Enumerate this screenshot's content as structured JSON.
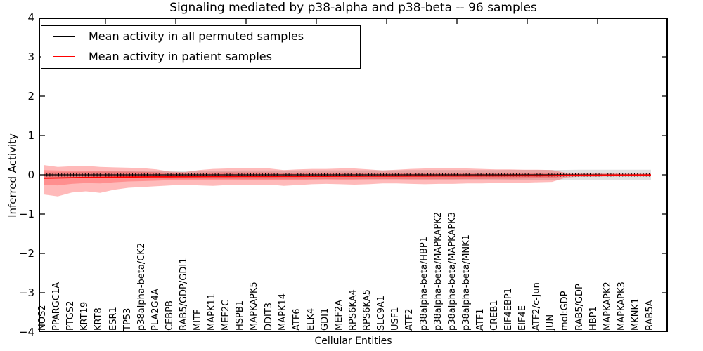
{
  "title": "Signaling mediated by p38-alpha and p38-beta -- 96 samples",
  "legend": {
    "items": [
      {
        "label": "Mean activity in all permuted samples",
        "color": "#000000"
      },
      {
        "label": "Mean activity in patient samples",
        "color": "#ff0000"
      }
    ]
  },
  "axes": {
    "ylabel": "Inferred Activity",
    "xlabel": "Cellular Entities",
    "ytick_labels": [
      "4",
      "3",
      "2",
      "1",
      "0",
      "−1",
      "−2",
      "−3",
      "−4"
    ]
  },
  "chart_data": {
    "type": "line",
    "title": "Signaling mediated by p38-alpha and p38-beta -- 96 samples",
    "xlabel": "Cellular Entities",
    "ylabel": "Inferred Activity",
    "ylim": [
      -4,
      4
    ],
    "yticks": [
      4,
      3,
      2,
      1,
      0,
      -1,
      -2,
      -3,
      -4
    ],
    "grid": false,
    "legend_position": "upper left",
    "categories": [
      "NOS2",
      "PPARGC1A",
      "PTGS2",
      "KRT19",
      "KRT8",
      "ESR1",
      "TP53",
      "p38alpha-beta/CK2",
      "PLA2G4A",
      "CEBPB",
      "RAB5/GDP/GDI1",
      "MITF",
      "MAPK11",
      "MEF2C",
      "HSPB1",
      "MAPKAPK5",
      "DDIT3",
      "MAPK14",
      "ATF6",
      "ELK4",
      "GDI1",
      "MEF2A",
      "RPS6KA4",
      "RPS6KA5",
      "SLC9A1",
      "USF1",
      "ATF2",
      "p38alpha-beta/HBP1",
      "p38alpha-beta/MAPKAPK2",
      "p38alpha-beta/MAPKAPK3",
      "p38alpha-beta/MNK1",
      "ATF1",
      "CREB1",
      "EIF4EBP1",
      "EIF4E",
      "ATF2/c-Jun",
      "JUN",
      "mol:GDP",
      "RAB5/GDP",
      "HBP1",
      "MAPKAPK2",
      "MAPKAPK3",
      "MKNK1",
      "RAB5A"
    ],
    "series": [
      {
        "name": "Mean activity in all permuted samples",
        "color": "#000000",
        "values": [
          0,
          0,
          0,
          0,
          0,
          0,
          0,
          0,
          0,
          0,
          0,
          0,
          0,
          0,
          0,
          0,
          0,
          0,
          0,
          0,
          0,
          0,
          0,
          0,
          0,
          0,
          0,
          0,
          0,
          0,
          0,
          0,
          0,
          0,
          0,
          0,
          0,
          0,
          0,
          0,
          0,
          0,
          0,
          0
        ]
      },
      {
        "name": "Mean activity in patient samples",
        "color": "#ff0000",
        "values": [
          -0.085,
          -0.08,
          -0.073,
          -0.068,
          -0.064,
          -0.06,
          -0.057,
          -0.054,
          -0.052,
          -0.05,
          -0.048,
          -0.047,
          -0.045,
          -0.044,
          -0.043,
          -0.042,
          -0.041,
          -0.04,
          -0.039,
          -0.038,
          -0.037,
          -0.036,
          -0.035,
          -0.034,
          -0.033,
          -0.032,
          -0.031,
          -0.03,
          -0.029,
          -0.028,
          -0.028,
          -0.027,
          -0.026,
          -0.025,
          -0.024,
          -0.023,
          -0.022,
          -0.015,
          -0.012,
          -0.01,
          -0.008,
          -0.007,
          -0.006,
          -0.005
        ]
      }
    ],
    "bands": [
      {
        "name": "permuted-std-band",
        "color": "#000000",
        "opacity": 0.12,
        "upper": [
          0.06,
          0.065,
          0.07,
          0.075,
          0.08,
          0.085,
          0.09,
          0.09,
          0.095,
          0.1,
          0.1,
          0.1,
          0.105,
          0.105,
          0.11,
          0.11,
          0.11,
          0.11,
          0.11,
          0.115,
          0.115,
          0.115,
          0.115,
          0.115,
          0.115,
          0.115,
          0.12,
          0.12,
          0.12,
          0.12,
          0.12,
          0.12,
          0.12,
          0.125,
          0.125,
          0.125,
          0.125,
          0.125,
          0.13,
          0.13,
          0.13,
          0.13,
          0.13,
          0.13
        ],
        "lower": [
          -0.06,
          -0.065,
          -0.07,
          -0.075,
          -0.08,
          -0.085,
          -0.09,
          -0.09,
          -0.095,
          -0.1,
          -0.1,
          -0.1,
          -0.105,
          -0.105,
          -0.11,
          -0.11,
          -0.11,
          -0.11,
          -0.11,
          -0.115,
          -0.115,
          -0.115,
          -0.115,
          -0.115,
          -0.115,
          -0.115,
          -0.12,
          -0.12,
          -0.12,
          -0.12,
          -0.12,
          -0.12,
          -0.12,
          -0.125,
          -0.125,
          -0.125,
          -0.125,
          -0.125,
          -0.13,
          -0.13,
          -0.13,
          -0.13,
          -0.13,
          -0.13
        ]
      },
      {
        "name": "patient-outer-band",
        "color": "#ff0000",
        "opacity": 0.27,
        "upper": [
          0.25,
          0.2,
          0.22,
          0.23,
          0.2,
          0.19,
          0.18,
          0.17,
          0.14,
          0.08,
          0.07,
          0.12,
          0.15,
          0.16,
          0.16,
          0.16,
          0.16,
          0.12,
          0.14,
          0.15,
          0.15,
          0.16,
          0.16,
          0.14,
          0.11,
          0.13,
          0.15,
          0.16,
          0.16,
          0.16,
          0.16,
          0.15,
          0.14,
          0.14,
          0.13,
          0.13,
          0.12,
          0.05,
          0.04,
          0.04,
          0.04,
          0.03,
          0.03,
          0.03
        ],
        "lower": [
          -0.5,
          -0.55,
          -0.45,
          -0.42,
          -0.46,
          -0.38,
          -0.33,
          -0.31,
          -0.29,
          -0.27,
          -0.25,
          -0.27,
          -0.28,
          -0.26,
          -0.25,
          -0.26,
          -0.25,
          -0.28,
          -0.26,
          -0.24,
          -0.23,
          -0.24,
          -0.25,
          -0.24,
          -0.22,
          -0.22,
          -0.23,
          -0.24,
          -0.23,
          -0.23,
          -0.22,
          -0.22,
          -0.21,
          -0.2,
          -0.2,
          -0.19,
          -0.18,
          -0.07,
          -0.05,
          -0.05,
          -0.04,
          -0.04,
          -0.04,
          -0.04
        ]
      },
      {
        "name": "patient-inner-band",
        "color": "#ff0000",
        "opacity": 0.23,
        "upper": [
          0.12,
          0.11,
          0.1,
          0.1,
          0.09,
          0.085,
          0.08,
          0.075,
          0.065,
          0.05,
          0.045,
          0.055,
          0.06,
          0.065,
          0.06,
          0.06,
          0.06,
          0.05,
          0.055,
          0.055,
          0.055,
          0.055,
          0.055,
          0.05,
          0.045,
          0.05,
          0.05,
          0.05,
          0.05,
          0.05,
          0.05,
          0.05,
          0.045,
          0.045,
          0.045,
          0.04,
          0.04,
          0.02,
          0.015,
          0.015,
          0.012,
          0.012,
          0.01,
          0.01
        ],
        "lower": [
          -0.25,
          -0.27,
          -0.23,
          -0.21,
          -0.22,
          -0.19,
          -0.17,
          -0.16,
          -0.15,
          -0.135,
          -0.125,
          -0.13,
          -0.14,
          -0.135,
          -0.13,
          -0.13,
          -0.125,
          -0.14,
          -0.13,
          -0.12,
          -0.115,
          -0.12,
          -0.12,
          -0.115,
          -0.11,
          -0.11,
          -0.11,
          -0.115,
          -0.11,
          -0.11,
          -0.105,
          -0.105,
          -0.1,
          -0.1,
          -0.095,
          -0.09,
          -0.085,
          -0.035,
          -0.03,
          -0.025,
          -0.022,
          -0.02,
          -0.02,
          -0.02
        ]
      }
    ]
  }
}
